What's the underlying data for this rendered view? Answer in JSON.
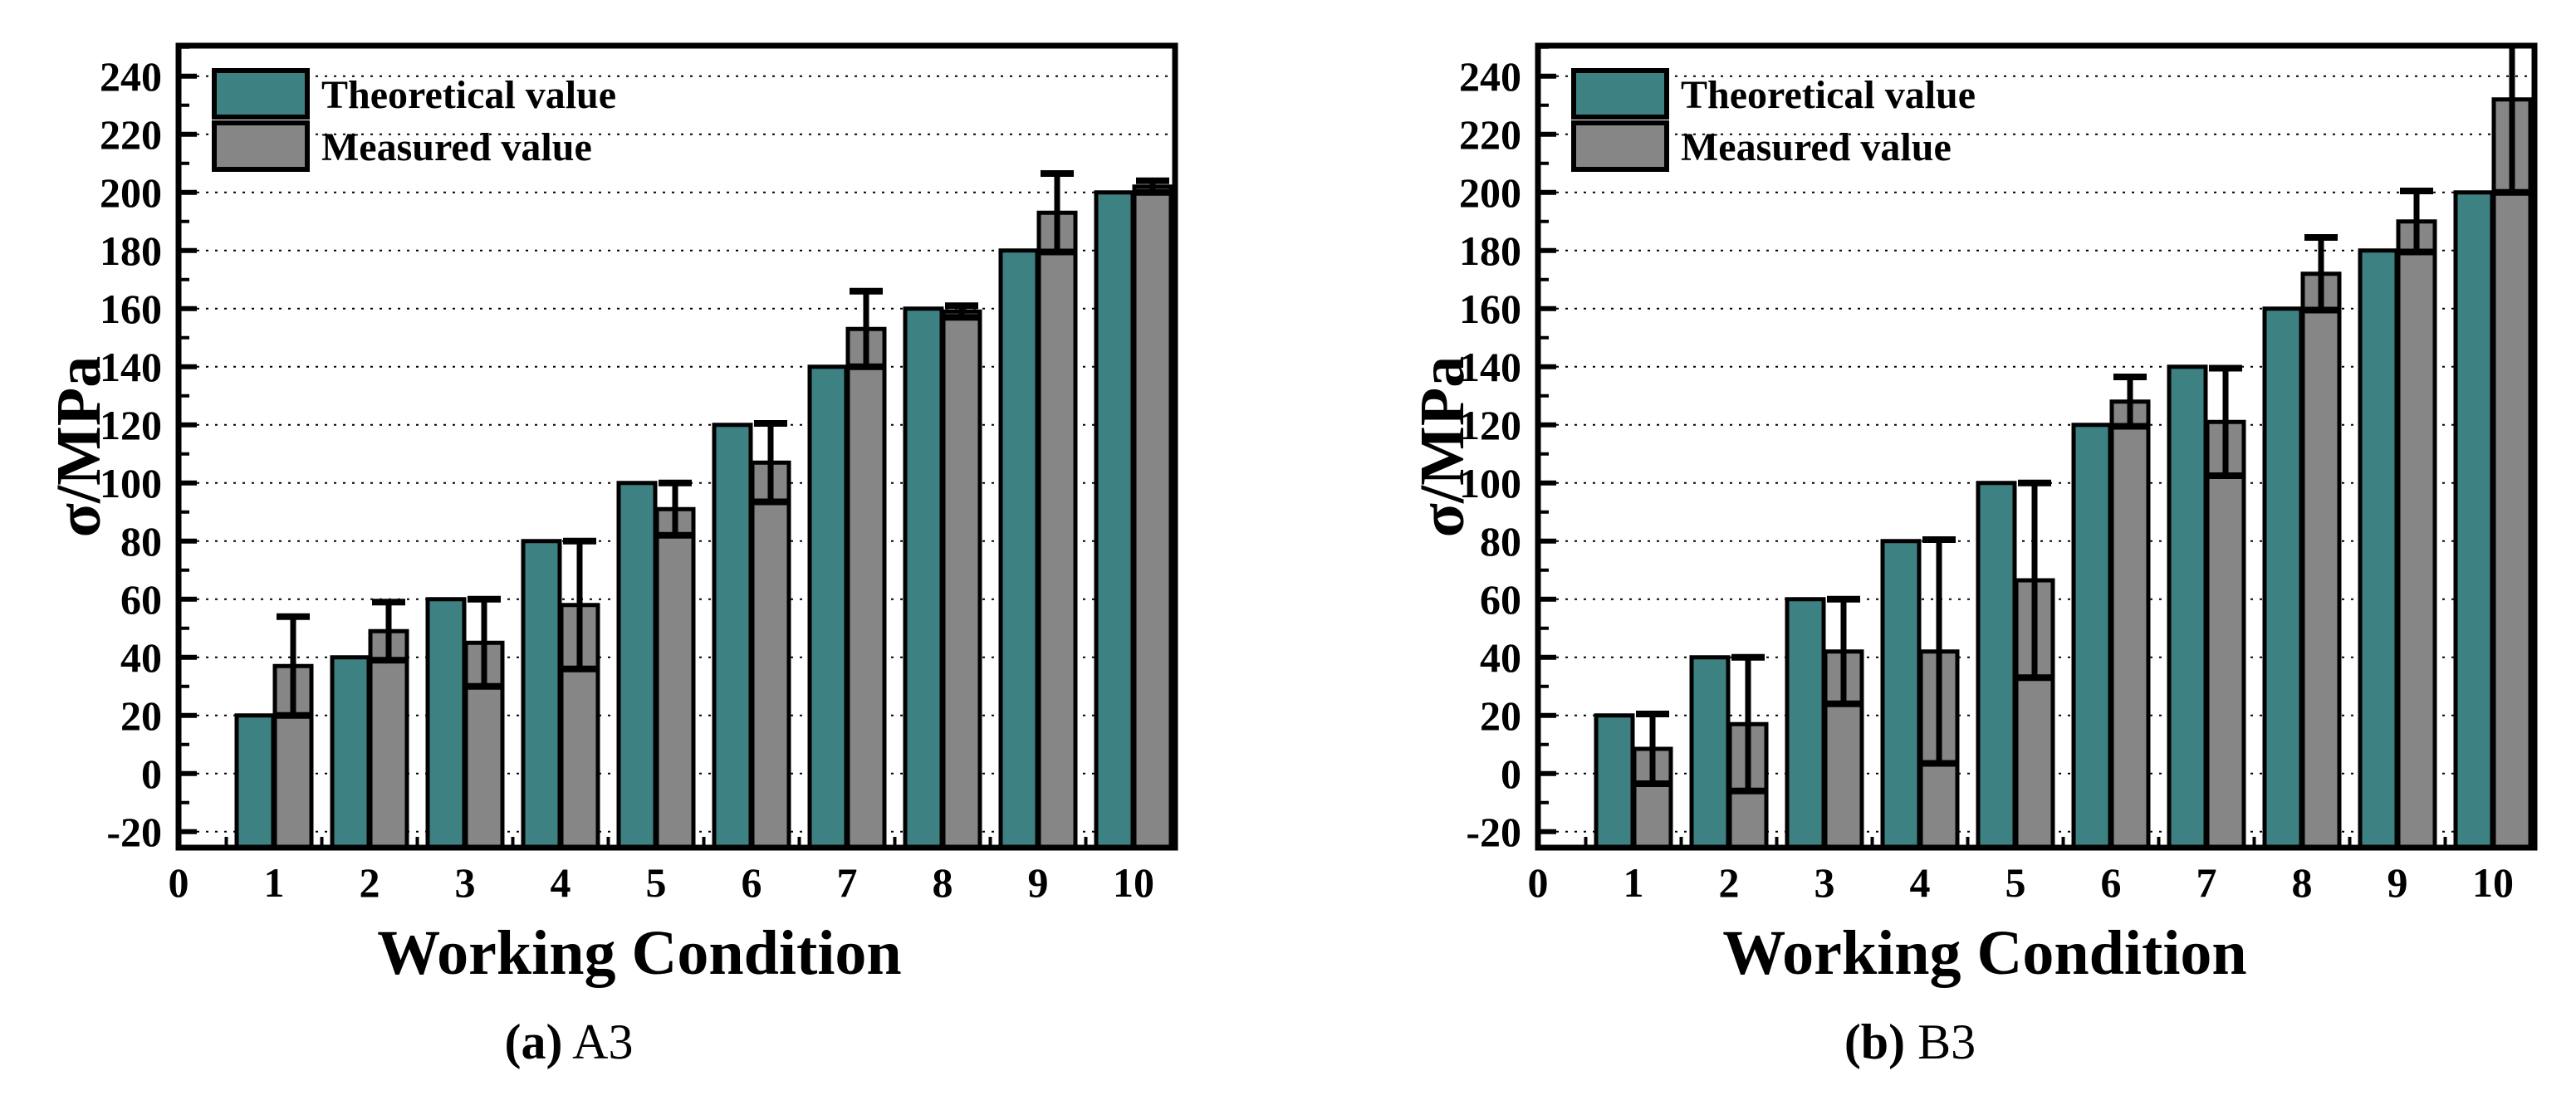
{
  "figure_type": "double-bar-chart-with-error-bars",
  "colors": {
    "theoretical": "#3E8182",
    "measured": "#868686",
    "axis": "#000000",
    "background": "#FFFFFF"
  },
  "legend": [
    "Theoretical value",
    "Measured value"
  ],
  "chart_data": [
    {
      "type": "bar",
      "title": "(a) A3",
      "caption_marker": "(a)",
      "caption_label": "A3",
      "xlabel": "Working Condition",
      "ylabel": "σ/MPa",
      "categories": [
        1,
        2,
        3,
        4,
        5,
        6,
        7,
        8,
        9,
        10
      ],
      "x_axis_ticks": [
        0,
        1,
        2,
        3,
        4,
        5,
        6,
        7,
        8,
        9,
        10
      ],
      "y_ticks": [
        -20,
        0,
        20,
        40,
        60,
        80,
        100,
        120,
        140,
        160,
        180,
        200,
        220,
        240
      ],
      "ylim": [
        -25.5,
        250.5
      ],
      "xlim": [
        0,
        10.43
      ],
      "grid": "horizontal-dotted",
      "legend_position": "top-left",
      "series": [
        {
          "name": "Theoretical value",
          "color": "#3E8182",
          "values": [
            20,
            40,
            60,
            80,
            100,
            120,
            140,
            160,
            180,
            200
          ]
        },
        {
          "name": "Measured value",
          "color": "#868686",
          "values": [
            37,
            49,
            45,
            58,
            91,
            107,
            153,
            159,
            193,
            202
          ],
          "errors": [
            17,
            10,
            15,
            22,
            9,
            13.5,
            13,
            2,
            13.5,
            2
          ]
        }
      ]
    },
    {
      "type": "bar",
      "title": "(b) B3",
      "caption_marker": "(b)",
      "caption_label": "B3",
      "xlabel": "Working Condition",
      "ylabel": "σ/MPa",
      "categories": [
        1,
        2,
        3,
        4,
        5,
        6,
        7,
        8,
        9,
        10
      ],
      "x_axis_ticks": [
        0,
        1,
        2,
        3,
        4,
        5,
        6,
        7,
        8,
        9,
        10
      ],
      "y_ticks": [
        -20,
        0,
        20,
        40,
        60,
        80,
        100,
        120,
        140,
        160,
        180,
        200,
        220,
        240
      ],
      "ylim": [
        -25.5,
        250.5
      ],
      "xlim": [
        0,
        10.43
      ],
      "grid": "horizontal-dotted",
      "legend_position": "top-left",
      "series": [
        {
          "name": "Theoretical value",
          "color": "#3E8182",
          "values": [
            20,
            40,
            60,
            80,
            100,
            120,
            140,
            160,
            180,
            200
          ]
        },
        {
          "name": "Measured value",
          "color": "#868686",
          "values": [
            8.5,
            17,
            42,
            42,
            66.5,
            128,
            121,
            172,
            190,
            232
          ],
          "errors": [
            12,
            23,
            18,
            38.5,
            33.5,
            8.5,
            18.5,
            12.5,
            10.5,
            32
          ]
        }
      ]
    }
  ]
}
